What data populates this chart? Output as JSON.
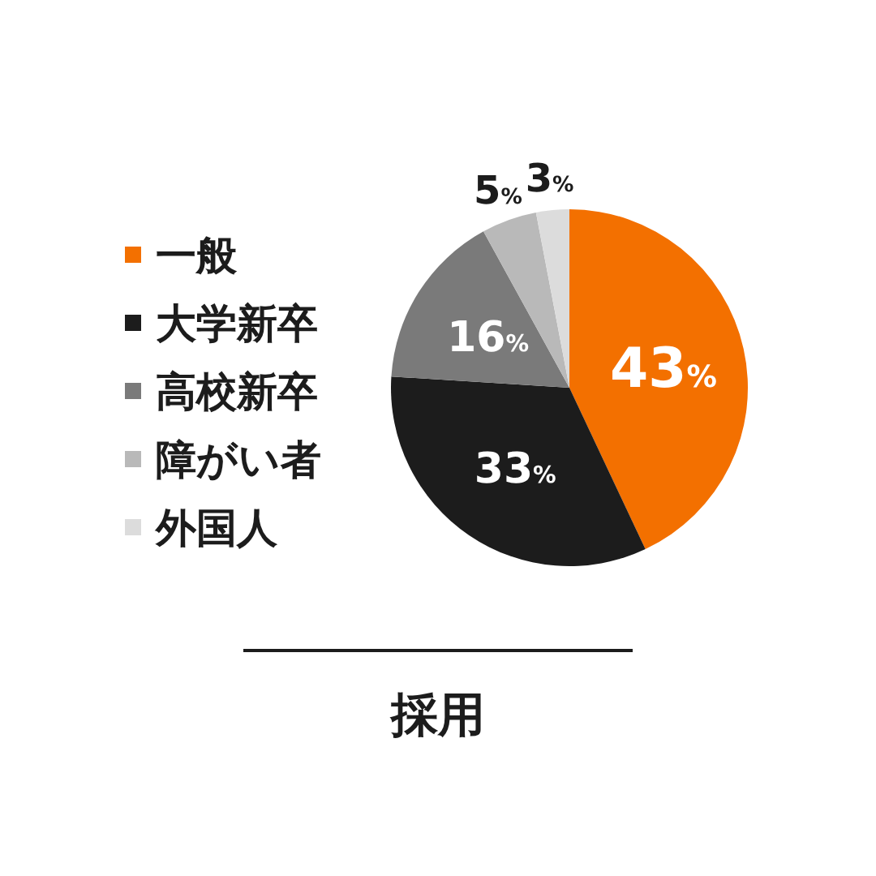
{
  "chart_data": {
    "type": "pie",
    "title": "採用",
    "categories": [
      "一般",
      "大学新卒",
      "高校新卒",
      "障がい者",
      "外国人"
    ],
    "values": [
      43,
      33,
      16,
      5,
      3
    ],
    "colors": [
      "#f37000",
      "#1c1c1c",
      "#7a7a7a",
      "#b9b9b9",
      "#dcdcdc"
    ],
    "value_labels": [
      "43%",
      "33%",
      "16%",
      "5%",
      "3%"
    ],
    "legend": "left"
  }
}
